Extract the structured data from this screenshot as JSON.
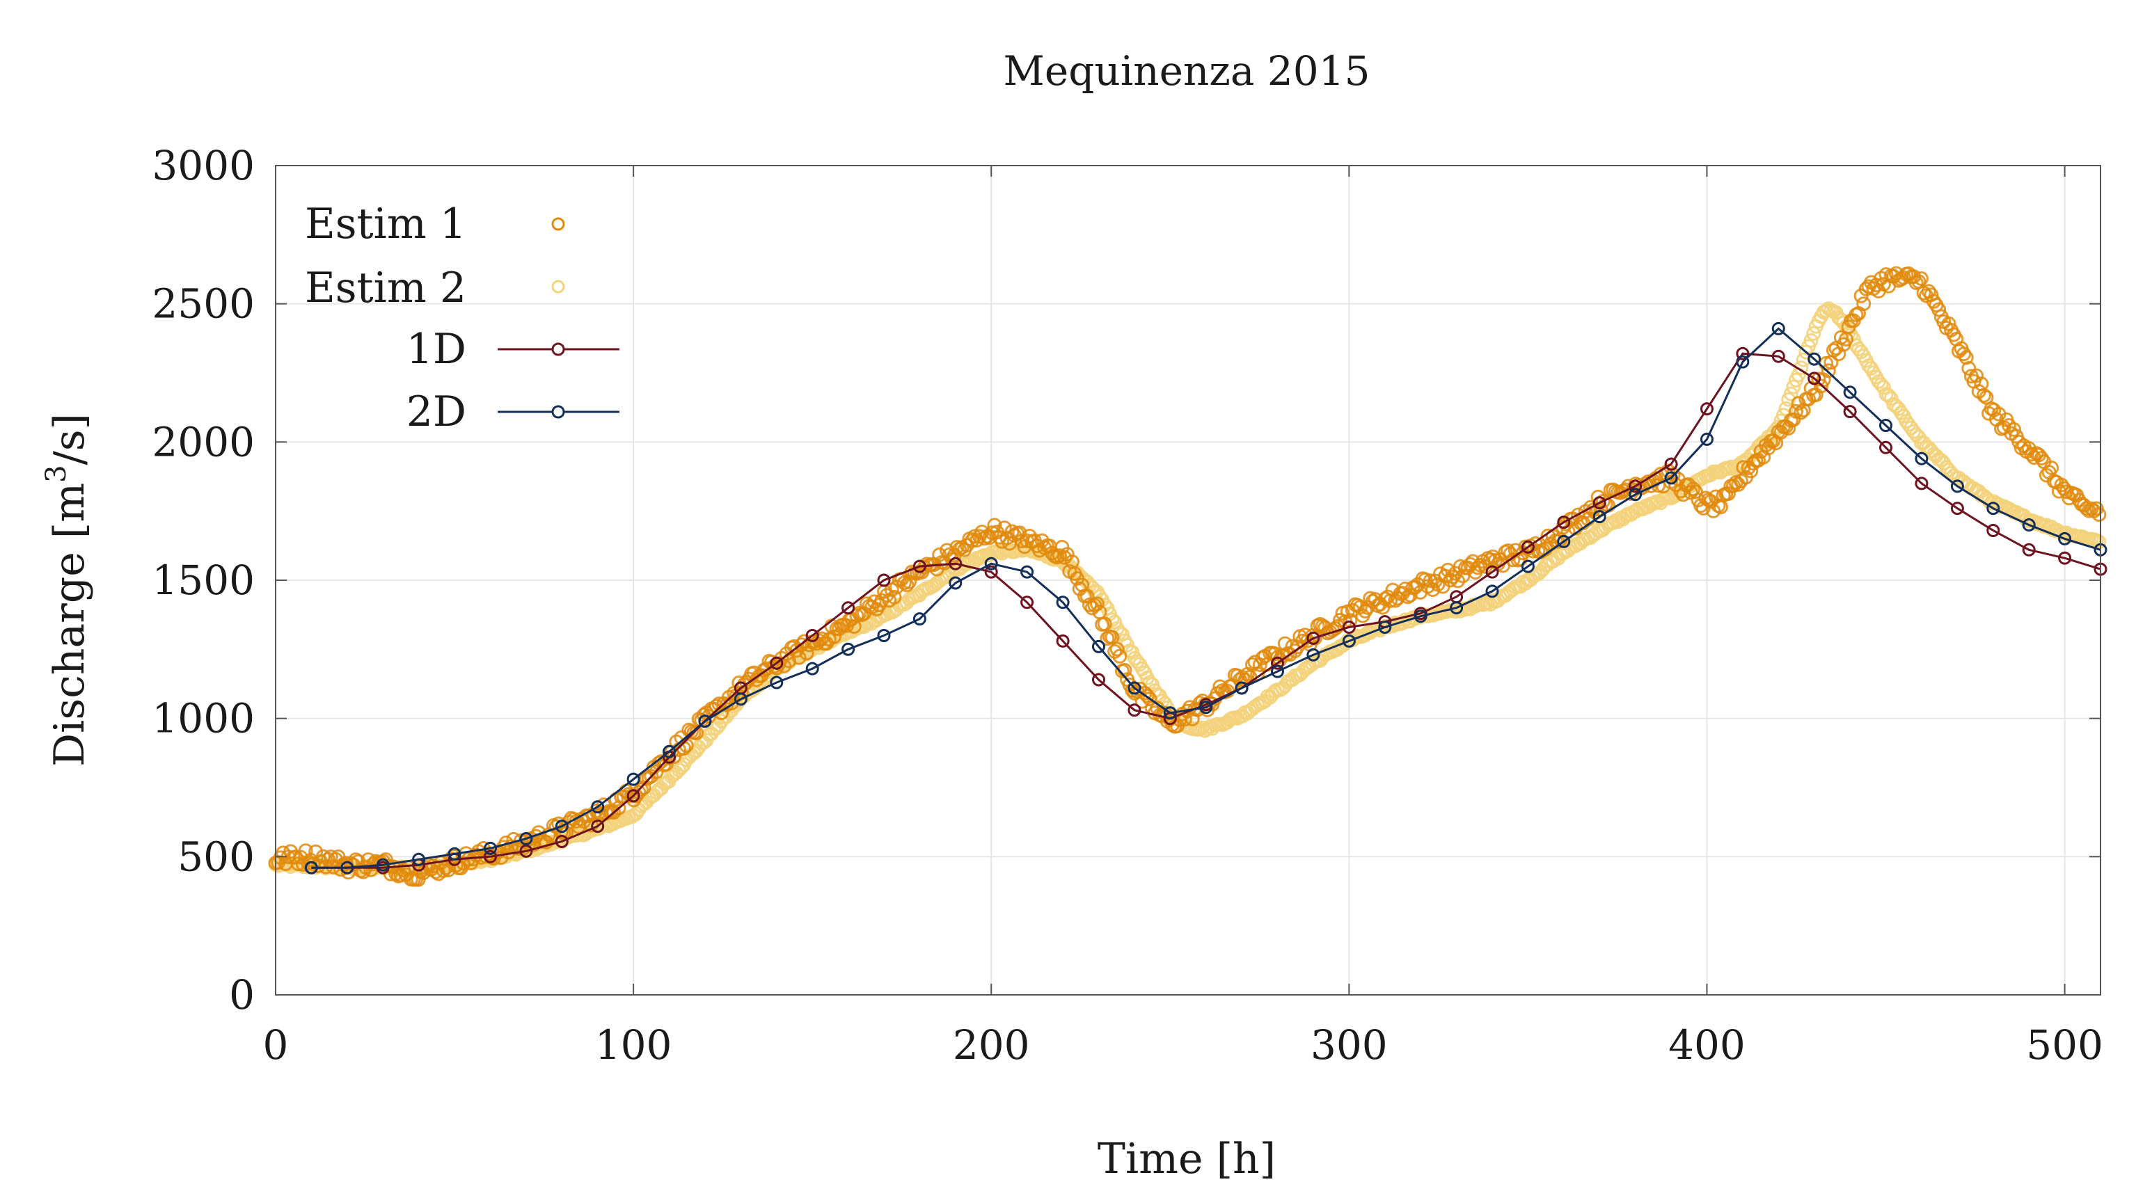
{
  "chart_data": {
    "type": "line",
    "title": "Mequinenza 2015",
    "xlabel": "Time [h]",
    "ylabel": "Discharge [m³/s]",
    "ylabel_parts": {
      "base": "Discharge [m",
      "sup": "3",
      "end": "/s]"
    },
    "xlim": [
      0,
      510
    ],
    "ylim": [
      0,
      3000
    ],
    "xticks": [
      0,
      100,
      200,
      300,
      400,
      500
    ],
    "yticks": [
      0,
      500,
      1000,
      1500,
      2000,
      2500,
      3000
    ],
    "grid": true,
    "legend_position": "top-left",
    "colors": {
      "estim1": "#e08a0b",
      "estim2": "#f3d27a",
      "d1": "#6e1420",
      "d2": "#14305a",
      "axis": "#555555",
      "grid": "#e6e6e6"
    },
    "series": [
      {
        "name": "Estim 1",
        "style": "markers",
        "x": [
          0,
          10,
          20,
          30,
          40,
          50,
          60,
          70,
          80,
          90,
          100,
          110,
          120,
          130,
          140,
          150,
          160,
          170,
          180,
          190,
          200,
          210,
          220,
          230,
          240,
          250,
          260,
          270,
          280,
          290,
          300,
          310,
          320,
          330,
          340,
          350,
          360,
          370,
          380,
          390,
          400,
          405,
          410,
          420,
          430,
          440,
          445,
          450,
          455,
          460,
          470,
          480,
          490,
          500,
          505,
          510
        ],
        "y": [
          490,
          500,
          470,
          470,
          440,
          480,
          510,
          550,
          600,
          650,
          730,
          870,
          990,
          1110,
          1200,
          1270,
          1340,
          1440,
          1530,
          1600,
          1680,
          1640,
          1600,
          1380,
          1100,
          980,
          1050,
          1150,
          1230,
          1300,
          1380,
          1430,
          1480,
          1520,
          1570,
          1600,
          1680,
          1780,
          1850,
          1870,
          1770,
          1780,
          1880,
          2030,
          2180,
          2420,
          2550,
          2590,
          2590,
          2580,
          2350,
          2100,
          1980,
          1820,
          1760,
          1750
        ]
      },
      {
        "name": "Estim 2",
        "style": "markers",
        "x": [
          0,
          10,
          20,
          30,
          40,
          50,
          60,
          70,
          80,
          90,
          100,
          110,
          120,
          130,
          140,
          150,
          160,
          170,
          180,
          190,
          200,
          210,
          220,
          230,
          240,
          250,
          255,
          260,
          270,
          280,
          290,
          300,
          310,
          320,
          330,
          340,
          350,
          360,
          370,
          380,
          390,
          400,
          410,
          420,
          430,
          433,
          436,
          440,
          450,
          460,
          470,
          480,
          490,
          500,
          510
        ],
        "y": [
          470,
          465,
          460,
          460,
          460,
          470,
          490,
          520,
          560,
          600,
          650,
          780,
          920,
          1070,
          1180,
          1250,
          1310,
          1370,
          1450,
          1540,
          1600,
          1610,
          1570,
          1450,
          1220,
          1020,
          970,
          960,
          1010,
          1100,
          1200,
          1280,
          1330,
          1370,
          1390,
          1420,
          1500,
          1600,
          1680,
          1750,
          1800,
          1880,
          1920,
          2050,
          2400,
          2480,
          2470,
          2390,
          2180,
          2000,
          1870,
          1780,
          1720,
          1670,
          1640
        ]
      },
      {
        "name": "1D",
        "style": "line-markers",
        "x": [
          10,
          20,
          30,
          40,
          50,
          60,
          70,
          80,
          90,
          100,
          110,
          120,
          130,
          140,
          150,
          160,
          170,
          180,
          190,
          200,
          210,
          220,
          230,
          240,
          250,
          260,
          270,
          280,
          290,
          300,
          310,
          320,
          330,
          340,
          350,
          360,
          370,
          380,
          390,
          400,
          410,
          420,
          430,
          440,
          450,
          460,
          470,
          480,
          490,
          500,
          510
        ],
        "y": [
          460,
          460,
          460,
          470,
          490,
          500,
          520,
          555,
          610,
          720,
          860,
          990,
          1110,
          1200,
          1300,
          1400,
          1500,
          1550,
          1560,
          1530,
          1420,
          1280,
          1140,
          1030,
          1000,
          1050,
          1110,
          1200,
          1290,
          1330,
          1350,
          1380,
          1440,
          1530,
          1620,
          1710,
          1780,
          1840,
          1920,
          2120,
          2320,
          2310,
          2230,
          2110,
          1980,
          1850,
          1760,
          1680,
          1610,
          1580,
          1540
        ]
      },
      {
        "name": "2D",
        "style": "line-markers",
        "x": [
          10,
          20,
          30,
          40,
          50,
          60,
          70,
          80,
          90,
          100,
          110,
          120,
          130,
          140,
          150,
          160,
          170,
          180,
          190,
          200,
          210,
          220,
          230,
          240,
          250,
          260,
          270,
          280,
          290,
          300,
          310,
          320,
          330,
          340,
          350,
          360,
          370,
          380,
          390,
          400,
          410,
          420,
          430,
          440,
          450,
          460,
          470,
          480,
          490,
          500,
          510
        ],
        "y": [
          460,
          460,
          470,
          490,
          510,
          530,
          565,
          610,
          680,
          780,
          880,
          990,
          1070,
          1130,
          1180,
          1250,
          1300,
          1360,
          1490,
          1560,
          1530,
          1420,
          1260,
          1110,
          1020,
          1040,
          1110,
          1170,
          1230,
          1280,
          1330,
          1370,
          1400,
          1460,
          1550,
          1640,
          1730,
          1810,
          1870,
          2010,
          2290,
          2410,
          2300,
          2180,
          2060,
          1940,
          1840,
          1760,
          1700,
          1650,
          1610
        ]
      }
    ]
  }
}
